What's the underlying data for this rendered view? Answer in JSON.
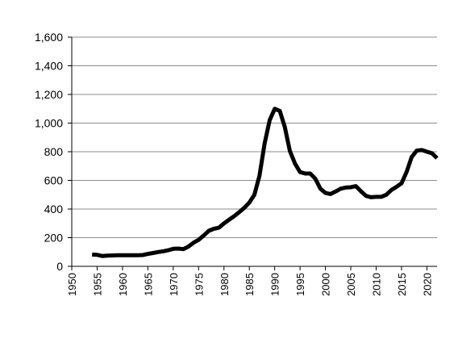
{
  "chart_data": {
    "type": "line",
    "title": "",
    "xlabel": "",
    "ylabel": "",
    "xlim": [
      1950,
      2022
    ],
    "ylim": [
      0,
      1600
    ],
    "grid": "horizontal",
    "legend": "none",
    "x_ticks": [
      "1950",
      "1955",
      "1960",
      "1965",
      "1970",
      "1975",
      "1980",
      "1985",
      "1990",
      "1995",
      "2000",
      "2005",
      "2010",
      "2015",
      "2020"
    ],
    "y_ticks": [
      "0",
      "200",
      "400",
      "600",
      "800",
      "1,000",
      "1,200",
      "1,400",
      "1,600"
    ],
    "series": [
      {
        "color": "#000000",
        "x": [
          1954,
          1955,
          1956,
          1957,
          1958,
          1959,
          1960,
          1961,
          1962,
          1963,
          1964,
          1965,
          1966,
          1967,
          1968,
          1969,
          1970,
          1971,
          1972,
          1973,
          1974,
          1975,
          1976,
          1977,
          1978,
          1979,
          1980,
          1981,
          1982,
          1983,
          1984,
          1985,
          1986,
          1987,
          1988,
          1989,
          1990,
          1991,
          1992,
          1993,
          1994,
          1995,
          1996,
          1997,
          1998,
          1999,
          2000,
          2001,
          2002,
          2003,
          2004,
          2005,
          2006,
          2007,
          2008,
          2009,
          2010,
          2011,
          2012,
          2013,
          2014,
          2015,
          2016,
          2017,
          2018,
          2019,
          2020,
          2021,
          2022
        ],
        "values": [
          82,
          80,
          72,
          75,
          76,
          77,
          77,
          77,
          78,
          78,
          79,
          87,
          93,
          100,
          105,
          112,
          122,
          124,
          120,
          138,
          165,
          185,
          215,
          248,
          262,
          270,
          300,
          325,
          350,
          378,
          408,
          445,
          500,
          632,
          855,
          1020,
          1100,
          1085,
          970,
          805,
          718,
          658,
          648,
          648,
          612,
          542,
          512,
          505,
          522,
          542,
          550,
          552,
          560,
          524,
          492,
          482,
          485,
          485,
          500,
          533,
          555,
          580,
          660,
          762,
          808,
          812,
          800,
          790,
          755
        ]
      }
    ]
  }
}
